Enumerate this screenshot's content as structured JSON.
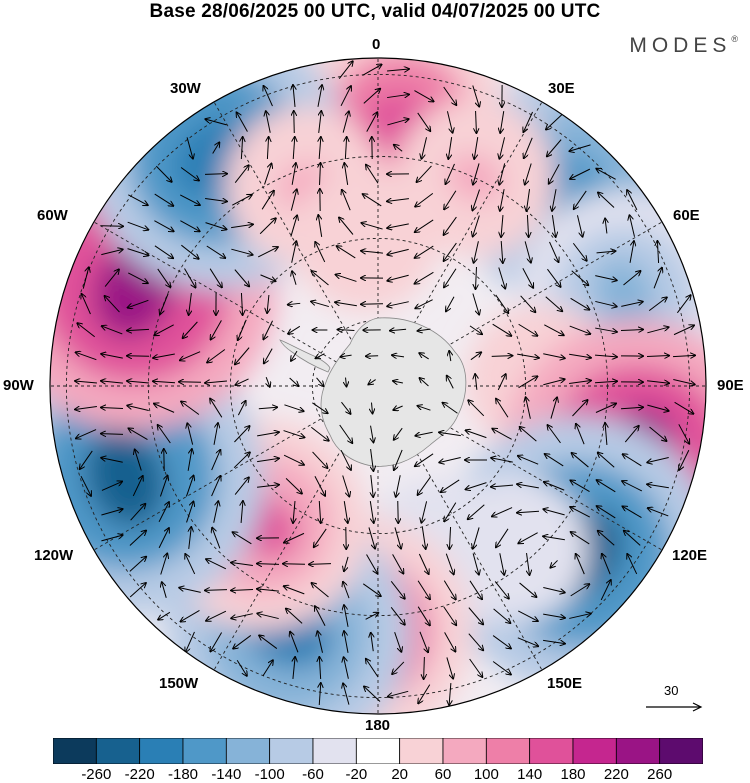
{
  "title": "Base 28/06/2025 00 UTC, valid 04/07/2025 00 UTC",
  "brand": "MODES",
  "brand_mark": "®",
  "longitude_labels": {
    "lon_0": "0",
    "lon_30e": "30E",
    "lon_60e": "60E",
    "lon_90e": "90E",
    "lon_120e": "120E",
    "lon_150e": "150E",
    "lon_180": "180",
    "lon_150w": "150W",
    "lon_120w": "120W",
    "lon_90w": "90W",
    "lon_60w": "60W",
    "lon_30w": "30W"
  },
  "vector_scale": {
    "label": "30"
  },
  "colorbar": {
    "ticks": [
      "-260",
      "-220",
      "-180",
      "-140",
      "-100",
      "-60",
      "-20",
      "20",
      "60",
      "100",
      "140",
      "180",
      "220",
      "260"
    ],
    "colors": [
      "#0c3a5c",
      "#17618f",
      "#2a7fb5",
      "#4f98c8",
      "#86b3d8",
      "#b7cbe5",
      "#e2e2ef",
      "#ffffff",
      "#f8d2d6",
      "#f4a9bf",
      "#ee7fa8",
      "#e0519a",
      "#c5268f",
      "#9a1485",
      "#5d0b6e"
    ]
  },
  "map": {
    "projection": "south-polar-stereographic",
    "land_color": "#e6e6e6",
    "anomalies": [
      {
        "lon": 5,
        "r": 0.8,
        "value": 150
      },
      {
        "lon": 45,
        "r": 0.85,
        "value": -180
      },
      {
        "lon": 25,
        "r": 0.7,
        "value": 60
      },
      {
        "lon": 70,
        "r": 0.8,
        "value": -140
      },
      {
        "lon": 88,
        "r": 0.5,
        "value": 50
      },
      {
        "lon": 105,
        "r": 0.82,
        "value": 230
      },
      {
        "lon": 130,
        "r": 0.8,
        "value": -240
      },
      {
        "lon": 160,
        "r": 0.55,
        "value": -60
      },
      {
        "lon": 140,
        "r": 0.65,
        "value": -40
      },
      {
        "lon": 185,
        "r": 0.75,
        "value": 170
      },
      {
        "lon": 200,
        "r": 0.8,
        "value": -190
      },
      {
        "lon": 220,
        "r": 0.55,
        "value": 140
      },
      {
        "lon": 240,
        "r": 0.75,
        "value": 80
      },
      {
        "lon": 250,
        "r": 0.82,
        "value": -240
      },
      {
        "lon": 292,
        "r": 0.8,
        "value": 250
      },
      {
        "lon": 325,
        "r": 0.85,
        "value": -220
      },
      {
        "lon": 340,
        "r": 0.65,
        "value": 60
      },
      {
        "lon": 355,
        "r": 0.45,
        "value": 40
      }
    ]
  }
}
